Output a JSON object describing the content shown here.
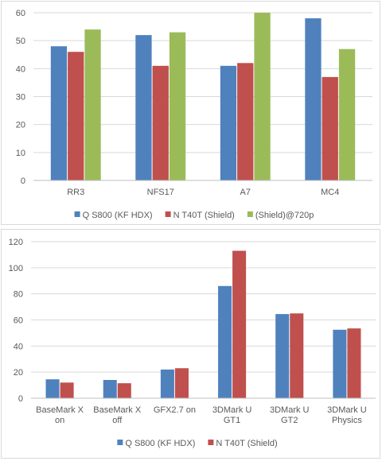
{
  "chart_data": [
    {
      "type": "bar",
      "categories": [
        "RR3",
        "NFS17",
        "A7",
        "MC4"
      ],
      "series": [
        {
          "name": "Q S800 (KF HDX)",
          "color": "#4F81BD",
          "values": [
            48,
            52,
            41,
            58
          ]
        },
        {
          "name": "N T40T (Shield)",
          "color": "#C0504D",
          "values": [
            46,
            41,
            42,
            37
          ]
        },
        {
          "name": "(Shield)@720p",
          "color": "#9BBB59",
          "values": [
            54,
            53,
            60,
            47
          ]
        }
      ],
      "ylim": [
        0,
        60
      ],
      "yticks": [
        0,
        10,
        20,
        30,
        40,
        50,
        60
      ],
      "grid": true,
      "legend": "bottom"
    },
    {
      "type": "bar",
      "categories": [
        [
          "BaseMark X",
          "on"
        ],
        [
          "BaseMark X",
          "off"
        ],
        [
          "GFX2.7 on"
        ],
        [
          "3DMark U",
          "GT1"
        ],
        [
          "3DMark U",
          "GT2"
        ],
        [
          "3DMark U",
          "Physics"
        ]
      ],
      "series": [
        {
          "name": "Q S800 (KF HDX)",
          "color": "#4F81BD",
          "values": [
            14.5,
            14,
            22,
            86,
            64.5,
            52.5
          ]
        },
        {
          "name": "N T40T (Shield)",
          "color": "#C0504D",
          "values": [
            12,
            11.5,
            23,
            113,
            65,
            53.5
          ]
        }
      ],
      "ylim": [
        0,
        120
      ],
      "yticks": [
        0,
        20,
        40,
        60,
        80,
        100,
        120
      ],
      "grid": true,
      "legend": "bottom"
    }
  ]
}
